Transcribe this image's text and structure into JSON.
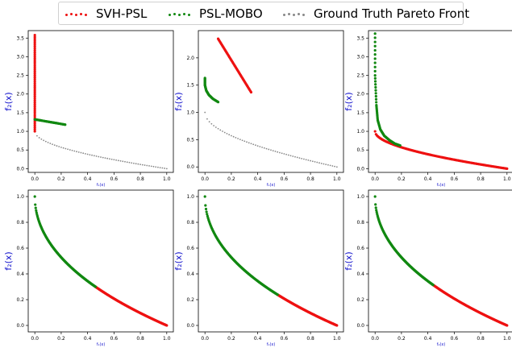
{
  "legend": {
    "items": [
      {
        "label": "SVH-PSL",
        "color": "#ee1111"
      },
      {
        "label": "PSL-MOBO",
        "color": "#118811"
      },
      {
        "label": "Ground Truth Pareto Front",
        "color": "#888888"
      }
    ]
  },
  "colors": {
    "svh": "#ee1111",
    "mobo": "#118811",
    "truth": "#888888",
    "ylabel": "#1111cc"
  },
  "chart_data": [
    {
      "type": "scatter",
      "title": "",
      "xlabel": "f₁(x)",
      "ylabel": "f₂(x)",
      "xlim": [
        -0.05,
        1.05
      ],
      "ylim": [
        -0.1,
        3.7
      ],
      "xticks": [
        "0.0",
        "0.2",
        "0.4",
        "0.6",
        "0.8",
        "1.0"
      ],
      "yticks": [
        "0.0",
        "0.5",
        "1.0",
        "1.5",
        "2.0",
        "2.5",
        "3.0",
        "3.5"
      ],
      "ytick_values": [
        0,
        0.5,
        1.0,
        1.5,
        2.0,
        2.5,
        3.0,
        3.5
      ],
      "series": [
        {
          "name": "Ground Truth Pareto Front",
          "role": "truth",
          "front": "convex",
          "x_range": [
            0.0,
            1.0
          ]
        },
        {
          "name": "SVH-PSL",
          "role": "svh",
          "segment": {
            "x": [
              0.0,
              0.0
            ],
            "y": [
              1.0,
              3.58
            ]
          }
        },
        {
          "name": "PSL-MOBO",
          "role": "mobo",
          "segment": {
            "x": [
              0.0,
              0.23
            ],
            "y": [
              1.32,
              1.18
            ]
          }
        }
      ]
    },
    {
      "type": "scatter",
      "title": "",
      "xlabel": "f₁(x)",
      "ylabel": "f₂(x)",
      "xlim": [
        -0.05,
        1.05
      ],
      "ylim": [
        -0.1,
        2.5
      ],
      "xticks": [
        "0.0",
        "0.2",
        "0.4",
        "0.6",
        "0.8",
        "1.0"
      ],
      "yticks": [
        "0.0",
        "0.5",
        "1.0",
        "1.5",
        "2.0"
      ],
      "ytick_values": [
        0,
        0.5,
        1.0,
        1.5,
        2.0
      ],
      "series": [
        {
          "name": "Ground Truth Pareto Front",
          "role": "truth",
          "front": "convex",
          "x_range": [
            0.0,
            1.0
          ]
        },
        {
          "name": "SVH-PSL",
          "role": "svh",
          "segment": {
            "x": [
              0.1,
              0.35
            ],
            "y": [
              2.35,
              1.37
            ]
          }
        },
        {
          "name": "PSL-MOBO",
          "role": "mobo",
          "curve": {
            "x": [
              0.0,
              0.0,
              0.01,
              0.03,
              0.06,
              0.1
            ],
            "y": [
              1.63,
              1.5,
              1.4,
              1.32,
              1.25,
              1.19
            ]
          }
        }
      ]
    },
    {
      "type": "scatter",
      "title": "",
      "xlabel": "f₂(x)",
      "ylabel": "f₂(x)",
      "xlim": [
        -0.05,
        1.05
      ],
      "ylim": [
        -0.1,
        3.7
      ],
      "xticks": [
        "0.0",
        "0.2",
        "0.4",
        "0.6",
        "0.8",
        "1.0"
      ],
      "yticks": [
        "0.0",
        "0.5",
        "1.0",
        "1.5",
        "2.0",
        "2.5",
        "3.0",
        "3.5"
      ],
      "ytick_values": [
        0,
        0.5,
        1.0,
        1.5,
        2.0,
        2.5,
        3.0,
        3.5
      ],
      "series": [
        {
          "name": "Ground Truth Pareto Front",
          "role": "truth",
          "front": "convex",
          "x_range": [
            0.0,
            1.0
          ]
        },
        {
          "name": "SVH-PSL",
          "role": "svh",
          "front": "convex",
          "x_range": [
            0.0,
            1.0
          ]
        },
        {
          "name": "PSL-MOBO",
          "role": "mobo",
          "curve": {
            "x": [
              0.0,
              0.0,
              0.01,
              0.02,
              0.04,
              0.07,
              0.11,
              0.15,
              0.19
            ],
            "y": [
              3.62,
              2.5,
              1.7,
              1.3,
              1.05,
              0.88,
              0.76,
              0.67,
              0.62
            ]
          }
        }
      ]
    },
    {
      "type": "scatter",
      "title": "",
      "xlabel": "f₁(x)",
      "ylabel": "f₂(x)",
      "xlim": [
        -0.05,
        1.05
      ],
      "ylim": [
        -0.05,
        1.05
      ],
      "xticks": [
        "0.0",
        "0.2",
        "0.4",
        "0.6",
        "0.8",
        "1.0"
      ],
      "yticks": [
        "0.0",
        "0.2",
        "0.4",
        "0.6",
        "0.8",
        "1.0"
      ],
      "ytick_values": [
        0,
        0.2,
        0.4,
        0.6,
        0.8,
        1.0
      ],
      "series": [
        {
          "name": "Ground Truth Pareto Front",
          "role": "truth",
          "front": "concave",
          "x_range": [
            0.0,
            1.0
          ]
        },
        {
          "name": "SVH-PSL",
          "role": "svh",
          "front": "concave",
          "x_range": [
            0.46,
            1.0
          ]
        },
        {
          "name": "PSL-MOBO",
          "role": "mobo",
          "front": "concave",
          "x_range": [
            0.0,
            0.46
          ]
        }
      ]
    },
    {
      "type": "scatter",
      "title": "",
      "xlabel": "f₁(x)",
      "ylabel": "f₂(x)",
      "xlim": [
        -0.05,
        1.05
      ],
      "ylim": [
        -0.05,
        1.05
      ],
      "xticks": [
        "0.0",
        "0.2",
        "0.4",
        "0.6",
        "0.8",
        "1.0"
      ],
      "yticks": [
        "0.0",
        "0.2",
        "0.4",
        "0.6",
        "0.8",
        "1.0"
      ],
      "ytick_values": [
        0,
        0.2,
        0.4,
        0.6,
        0.8,
        1.0
      ],
      "series": [
        {
          "name": "Ground Truth Pareto Front",
          "role": "truth",
          "front": "concave",
          "x_range": [
            0.0,
            1.0
          ]
        },
        {
          "name": "SVH-PSL",
          "role": "svh",
          "front": "concave",
          "x_range": [
            0.55,
            1.0
          ]
        },
        {
          "name": "PSL-MOBO",
          "role": "mobo",
          "front": "concave",
          "x_range": [
            0.0,
            0.55
          ]
        }
      ]
    },
    {
      "type": "scatter",
      "title": "",
      "xlabel": "f₂(x)",
      "ylabel": "f₂(x)",
      "xlim": [
        -0.05,
        1.05
      ],
      "ylim": [
        -0.05,
        1.05
      ],
      "xticks": [
        "0.0",
        "0.2",
        "0.4",
        "0.6",
        "0.8",
        "1.0"
      ],
      "yticks": [
        "0.0",
        "0.2",
        "0.4",
        "0.6",
        "0.8",
        "1.0"
      ],
      "ytick_values": [
        0,
        0.2,
        0.4,
        0.6,
        0.8,
        1.0
      ],
      "series": [
        {
          "name": "Ground Truth Pareto Front",
          "role": "truth",
          "front": "concave",
          "x_range": [
            0.0,
            1.0
          ]
        },
        {
          "name": "SVH-PSL",
          "role": "svh",
          "front": "concave",
          "x_range": [
            0.44,
            1.0
          ]
        },
        {
          "name": "PSL-MOBO",
          "role": "mobo",
          "front": "concave",
          "x_range": [
            0.0,
            0.44
          ]
        }
      ]
    }
  ]
}
